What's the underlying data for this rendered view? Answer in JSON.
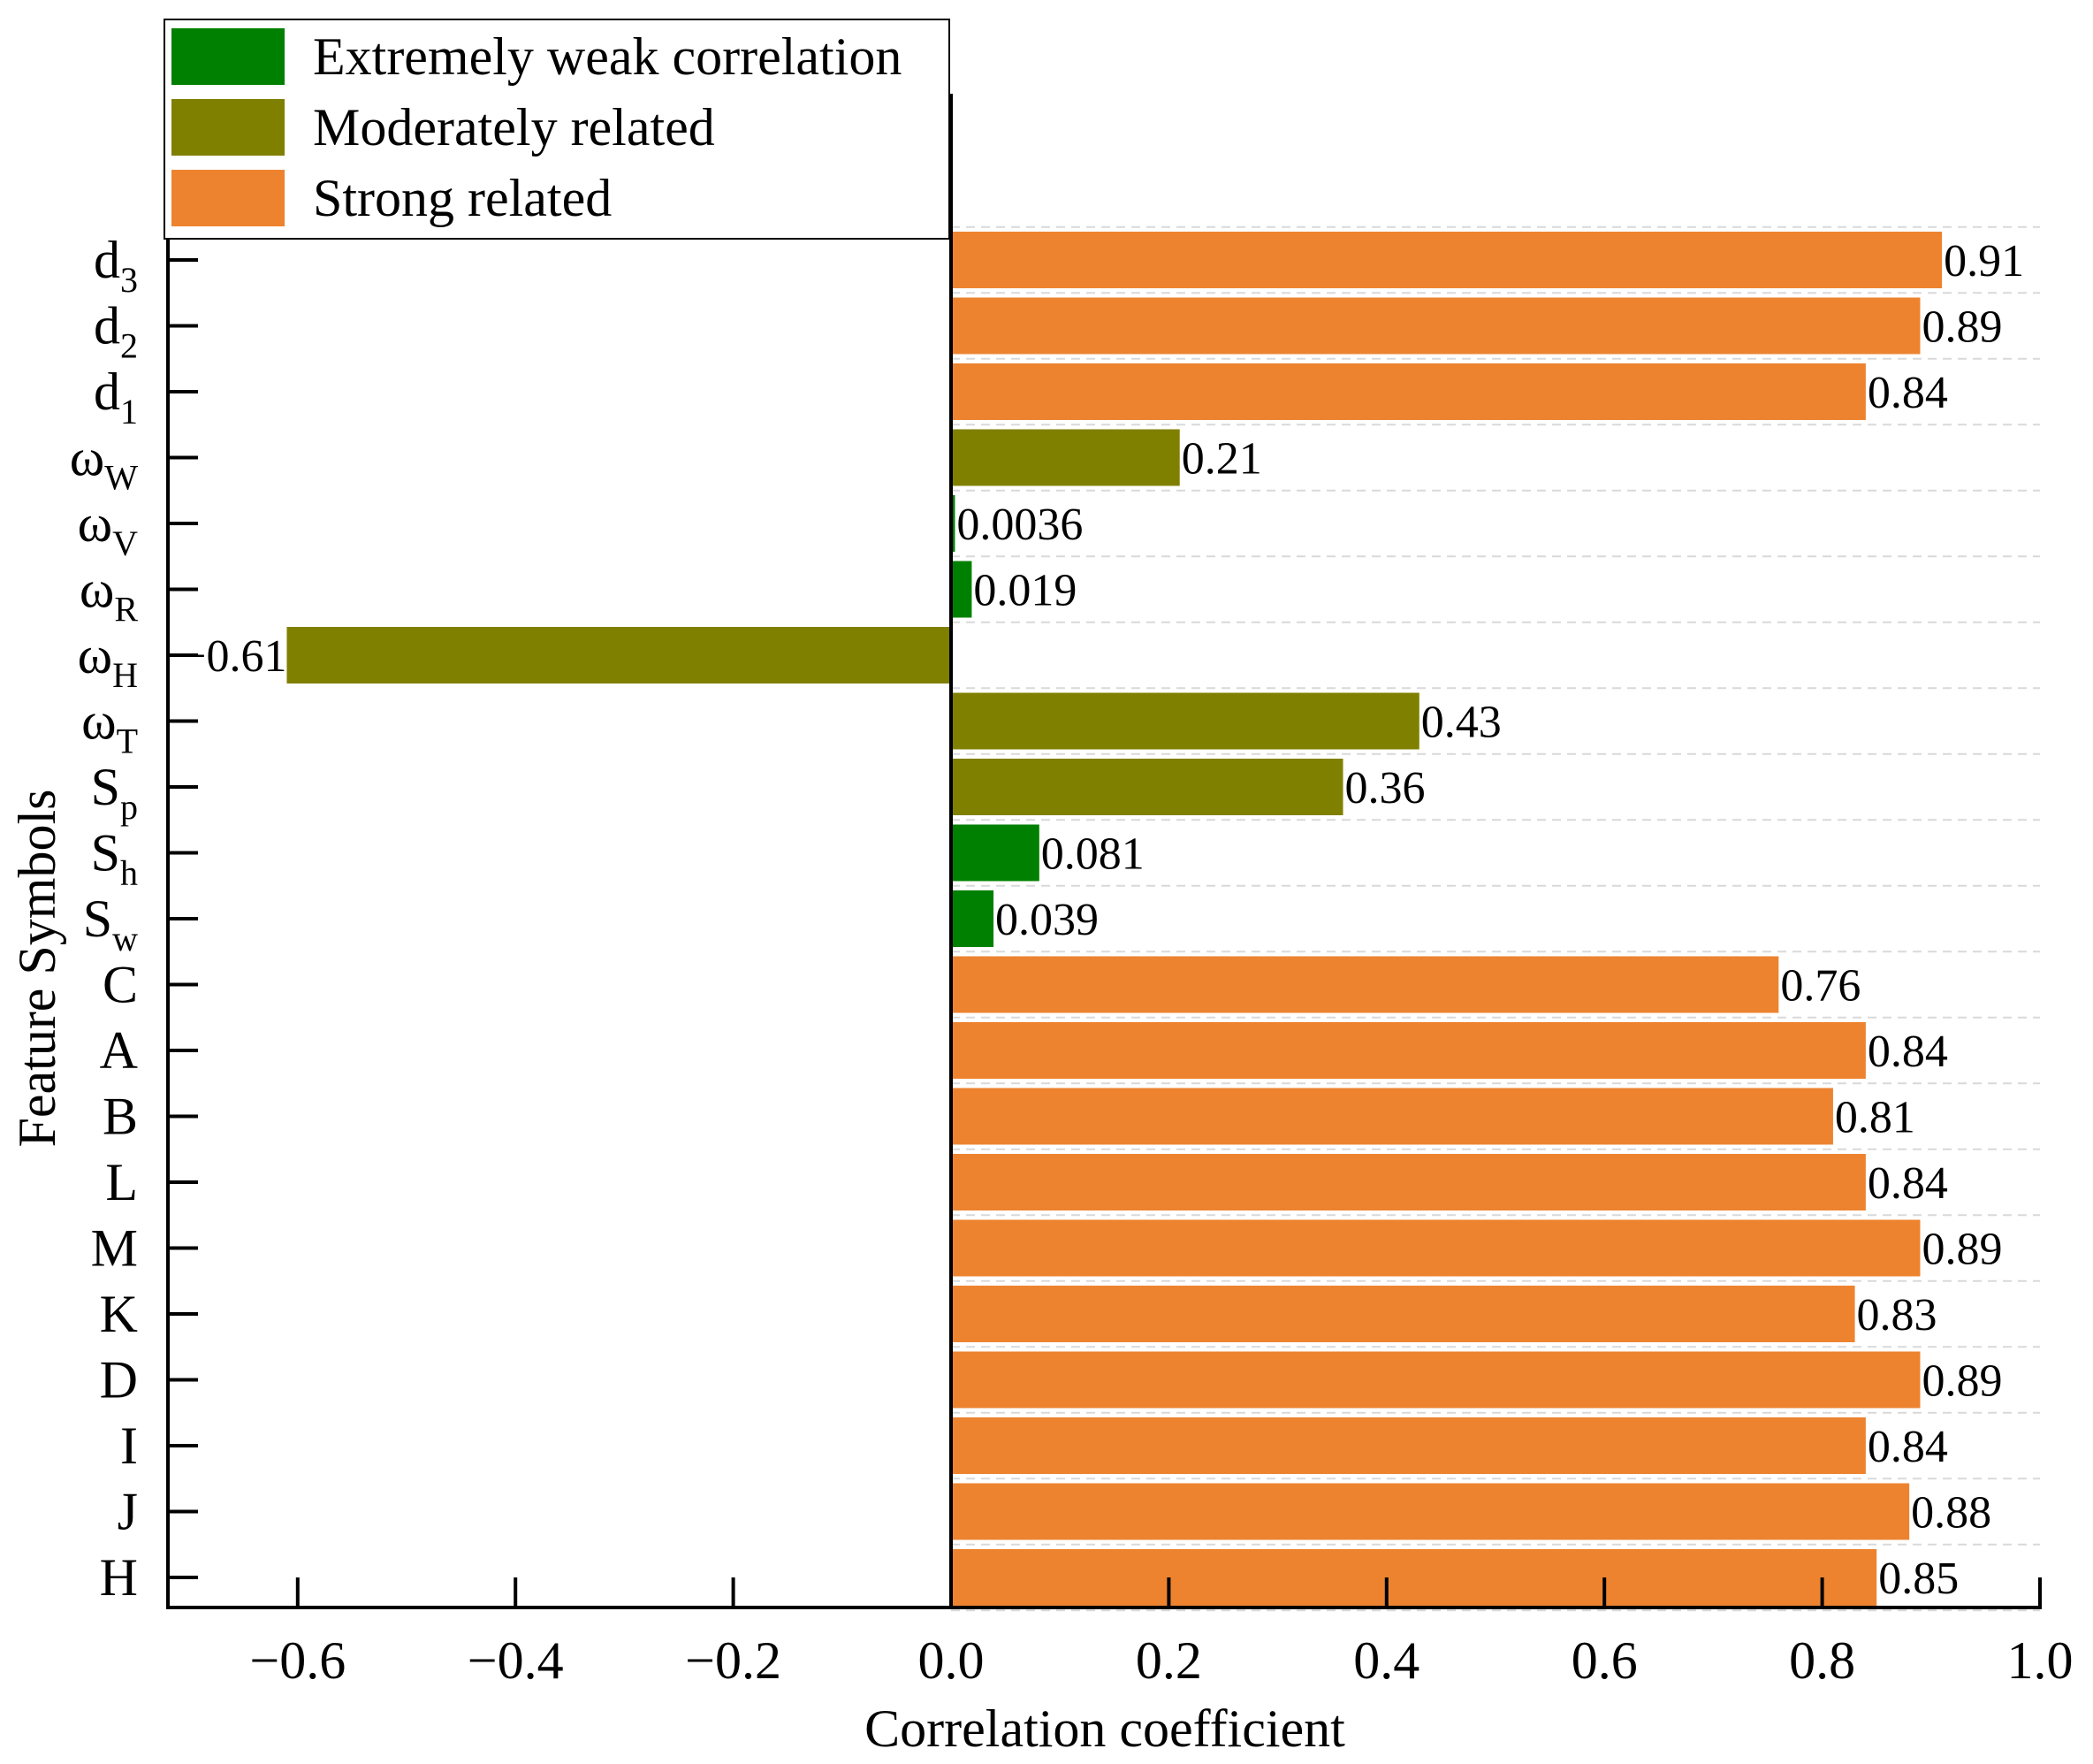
{
  "chart_data": {
    "type": "bar",
    "orientation": "horizontal",
    "xlabel": "Correlation coefficient",
    "ylabel": "Feature Symbols",
    "xlim": [
      -0.72,
      1.0
    ],
    "x_ticks": [
      -0.6,
      -0.4,
      -0.2,
      0.0,
      0.2,
      0.4,
      0.6,
      0.8,
      1.0
    ],
    "x_tick_labels": [
      "−0.6",
      "−0.4",
      "−0.2",
      "0.0",
      "0.2",
      "0.4",
      "0.6",
      "0.8",
      "1.0"
    ],
    "grid": "horizontal dashed",
    "legend_position": "top-left",
    "legend": [
      {
        "key": "weak",
        "label": "Extremely weak correlation",
        "color": "#008000"
      },
      {
        "key": "moderate",
        "label": "Moderately related",
        "color": "#808000"
      },
      {
        "key": "strong",
        "label": "Strong related",
        "color": "#ED832F"
      }
    ],
    "categories": [
      {
        "base": "d",
        "sub": "3",
        "value": 0.91,
        "label": "0.91",
        "group": "strong"
      },
      {
        "base": "d",
        "sub": "2",
        "value": 0.89,
        "label": "0.89",
        "group": "strong"
      },
      {
        "base": "d",
        "sub": "1",
        "value": 0.84,
        "label": "0.84",
        "group": "strong"
      },
      {
        "base": "ω",
        "sub": "W",
        "value": 0.21,
        "label": "0.21",
        "group": "moderate"
      },
      {
        "base": "ω",
        "sub": "V",
        "value": 0.0036,
        "label": "0.0036",
        "group": "weak"
      },
      {
        "base": "ω",
        "sub": "R",
        "value": 0.019,
        "label": "0.019",
        "group": "weak"
      },
      {
        "base": "ω",
        "sub": "H",
        "value": -0.61,
        "label": "−0.61",
        "group": "moderate"
      },
      {
        "base": "ω",
        "sub": "T",
        "value": 0.43,
        "label": "0.43",
        "group": "moderate"
      },
      {
        "base": "S",
        "sub": "p",
        "value": 0.36,
        "label": "0.36",
        "group": "moderate"
      },
      {
        "base": "S",
        "sub": "h",
        "value": 0.081,
        "label": "0.081",
        "group": "weak"
      },
      {
        "base": "S",
        "sub": "w",
        "value": 0.039,
        "label": "0.039",
        "group": "weak"
      },
      {
        "base": "C",
        "sub": "",
        "value": 0.76,
        "label": "0.76",
        "group": "strong"
      },
      {
        "base": "A",
        "sub": "",
        "value": 0.84,
        "label": "0.84",
        "group": "strong"
      },
      {
        "base": "B",
        "sub": "",
        "value": 0.81,
        "label": "0.81",
        "group": "strong"
      },
      {
        "base": "L",
        "sub": "",
        "value": 0.84,
        "label": "0.84",
        "group": "strong"
      },
      {
        "base": "M",
        "sub": "",
        "value": 0.89,
        "label": "0.89",
        "group": "strong"
      },
      {
        "base": "K",
        "sub": "",
        "value": 0.83,
        "label": "0.83",
        "group": "strong"
      },
      {
        "base": "D",
        "sub": "",
        "value": 0.89,
        "label": "0.89",
        "group": "strong"
      },
      {
        "base": "I",
        "sub": "",
        "value": 0.84,
        "label": "0.84",
        "group": "strong"
      },
      {
        "base": "J",
        "sub": "",
        "value": 0.88,
        "label": "0.88",
        "group": "strong"
      },
      {
        "base": "H",
        "sub": "",
        "value": 0.85,
        "label": "0.85",
        "group": "strong"
      }
    ]
  }
}
